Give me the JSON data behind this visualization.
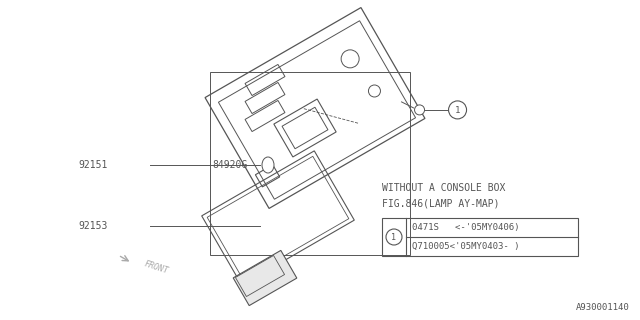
{
  "bg_color": "#ffffff",
  "diagram_id": "A930001140",
  "note_line1": "WITHOUT A CONSOLE BOX",
  "note_line2": "FIG.846(LAMP AY-MAP)",
  "callout_row1": "0471S   <-'05MY0406)",
  "callout_row2": "Q710005<'05MY0403- )",
  "line_color": "#555555",
  "text_color": "#555555",
  "font_size": 7.0
}
